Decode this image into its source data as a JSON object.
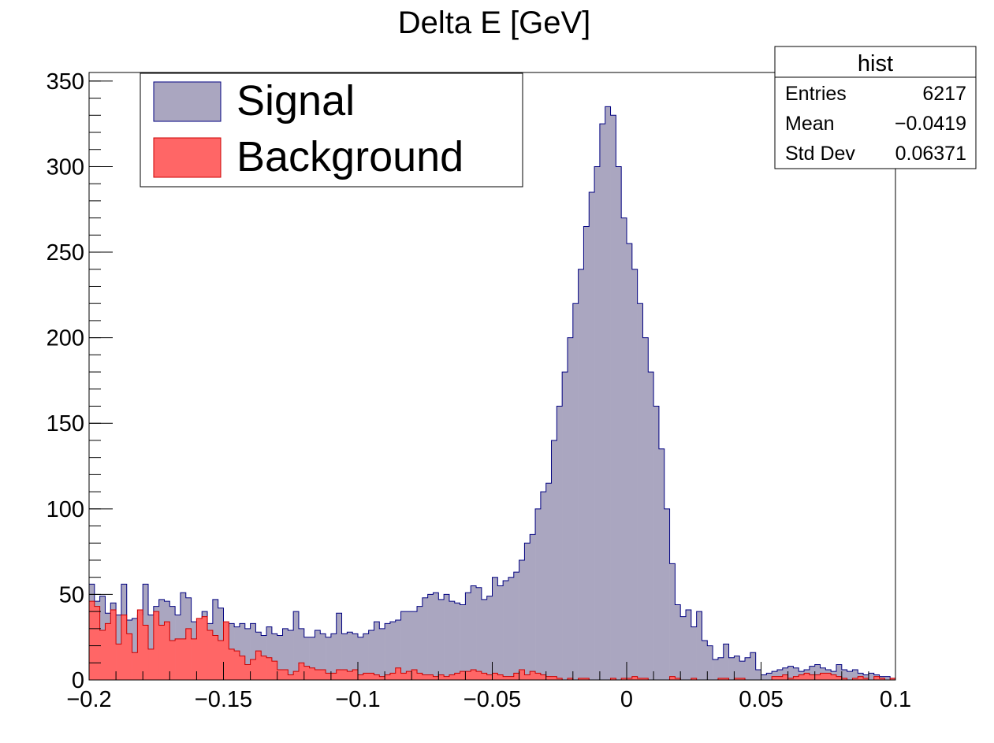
{
  "chart_data": {
    "type": "bar",
    "title": "Delta E [GeV]",
    "xlabel": "",
    "ylabel": "",
    "xlim": [
      -0.2,
      0.1
    ],
    "ylim": [
      0,
      355
    ],
    "x_ticks": [
      -0.2,
      -0.15,
      -0.1,
      -0.05,
      0,
      0.05,
      0.1
    ],
    "x_tick_labels": [
      "−0.2",
      "−0.15",
      "−0.1",
      "−0.05",
      "0",
      "0.05",
      "0.1"
    ],
    "y_ticks": [
      0,
      50,
      100,
      150,
      200,
      250,
      300,
      350
    ],
    "y_tick_labels": [
      "0",
      "50",
      "100",
      "150",
      "200",
      "250",
      "300",
      "350"
    ],
    "bins": 150,
    "bin_width": 0.002,
    "legend_position": "top-left",
    "series": [
      {
        "name": "Signal",
        "fill": "#aaa6c0",
        "line": "#000080",
        "values": [
          56,
          46,
          49,
          39,
          45,
          38,
          56,
          35,
          36,
          38,
          56,
          38,
          43,
          47,
          46,
          43,
          38,
          51,
          48,
          34,
          34,
          40,
          33,
          47,
          42,
          31,
          33,
          31,
          33,
          30,
          33,
          28,
          26,
          31,
          27,
          26,
          30,
          29,
          40,
          30,
          25,
          25,
          29,
          27,
          25,
          27,
          39,
          27,
          28,
          27,
          25,
          27,
          29,
          34,
          30,
          33,
          34,
          35,
          40,
          40,
          40,
          43,
          48,
          50,
          51,
          47,
          50,
          46,
          45,
          44,
          51,
          55,
          54,
          47,
          49,
          60,
          55,
          58,
          60,
          63,
          70,
          80,
          85,
          100,
          110,
          115,
          140,
          160,
          180,
          200,
          220,
          240,
          265,
          285,
          300,
          325,
          335,
          330,
          300,
          270,
          255,
          240,
          220,
          200,
          180,
          160,
          135,
          100,
          68,
          44,
          37,
          41,
          31,
          40,
          23,
          20,
          12,
          13,
          21,
          13,
          14,
          11,
          13,
          16,
          6,
          3,
          4,
          5,
          6,
          7,
          8,
          7,
          5,
          6,
          8,
          9,
          7,
          6,
          5,
          9,
          6,
          5,
          6,
          4,
          3,
          4,
          3,
          2,
          2,
          1
        ]
      },
      {
        "name": "Background",
        "fill": "#ff6666",
        "line": "#cc0000",
        "values": [
          46,
          43,
          29,
          33,
          41,
          21,
          38,
          27,
          16,
          41,
          32,
          18,
          40,
          32,
          34,
          23,
          24,
          24,
          30,
          24,
          36,
          37,
          29,
          26,
          23,
          34,
          18,
          17,
          14,
          9,
          12,
          17,
          14,
          13,
          11,
          6,
          6,
          3,
          5,
          10,
          8,
          7,
          6,
          6,
          4,
          4,
          6,
          6,
          5,
          6,
          3,
          4,
          4,
          3,
          2,
          3,
          4,
          7,
          4,
          5,
          6,
          4,
          3,
          3,
          2,
          3,
          2,
          3,
          4,
          5,
          5,
          6,
          5,
          4,
          3,
          4,
          3,
          2,
          2,
          4,
          6,
          3,
          5,
          4,
          3,
          2,
          2,
          1,
          0,
          1,
          0,
          1,
          1,
          0,
          0,
          0,
          0,
          1,
          0,
          1,
          1,
          2,
          1,
          1,
          0,
          0,
          0,
          0,
          2,
          1,
          0,
          0,
          1,
          0,
          0,
          0,
          0,
          1,
          1,
          0,
          1,
          1,
          0,
          0,
          0,
          0,
          0,
          2,
          2,
          3,
          1,
          2,
          3,
          4,
          3,
          3,
          4,
          4,
          3,
          2,
          1,
          0,
          1,
          2,
          1,
          0,
          2,
          1,
          0,
          1
        ]
      }
    ],
    "stats": {
      "title": "hist",
      "rows": [
        {
          "label": "Entries",
          "value": "6217"
        },
        {
          "label": "Mean",
          "value": "−0.0419"
        },
        {
          "label": "Std Dev",
          "value": "0.06371"
        }
      ]
    }
  }
}
